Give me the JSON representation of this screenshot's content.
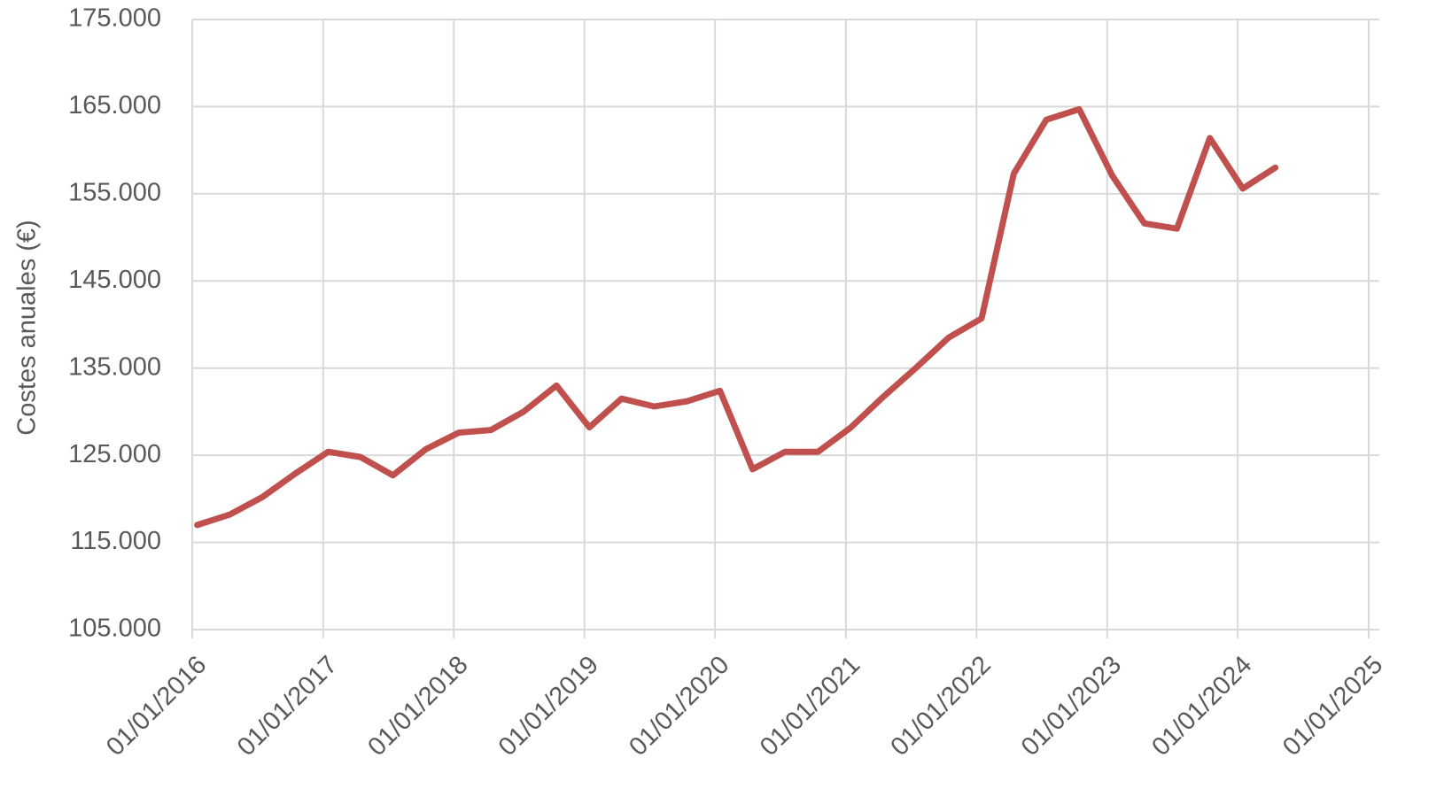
{
  "chart_data": {
    "type": "line",
    "y_label": "Costes anuales (€)",
    "x": [
      "2016-01-15",
      "2016-04-15",
      "2016-07-15",
      "2016-10-15",
      "2017-01-15",
      "2017-04-15",
      "2017-07-15",
      "2017-10-15",
      "2018-01-15",
      "2018-04-15",
      "2018-07-15",
      "2018-10-15",
      "2019-01-15",
      "2019-04-15",
      "2019-07-15",
      "2019-10-15",
      "2020-01-15",
      "2020-04-15",
      "2020-07-15",
      "2020-10-15",
      "2021-01-15",
      "2021-04-15",
      "2021-07-15",
      "2021-10-15",
      "2022-01-15",
      "2022-04-15",
      "2022-07-15",
      "2022-10-15",
      "2023-01-15",
      "2023-04-15",
      "2023-07-15",
      "2023-10-15",
      "2024-01-15",
      "2024-04-15"
    ],
    "series": [
      {
        "name": null,
        "color": "#c0504d",
        "values": [
          117000,
          118200,
          120200,
          122900,
          125400,
          124800,
          122700,
          125700,
          127600,
          127900,
          130000,
          133000,
          128200,
          131500,
          130600,
          131200,
          132400,
          123400,
          125400,
          125400,
          128200,
          131700,
          135000,
          138500,
          140700,
          157300,
          163500,
          164700,
          157100,
          151600,
          151000,
          161400,
          155600,
          158000
        ]
      }
    ],
    "xlim": [
      "2016-01-01",
      "2025-01-01"
    ],
    "xticks": [
      {
        "value": "2016-01-01",
        "label": "01/01/2016"
      },
      {
        "value": "2017-01-01",
        "label": "01/01/2017"
      },
      {
        "value": "2018-01-01",
        "label": "01/01/2018"
      },
      {
        "value": "2019-01-01",
        "label": "01/01/2019"
      },
      {
        "value": "2020-01-01",
        "label": "01/01/2020"
      },
      {
        "value": "2021-01-01",
        "label": "01/01/2021"
      },
      {
        "value": "2022-01-01",
        "label": "01/01/2022"
      },
      {
        "value": "2023-01-01",
        "label": "01/01/2023"
      },
      {
        "value": "2024-01-01",
        "label": "01/01/2024"
      },
      {
        "value": "2025-01-01",
        "label": "01/01/2025"
      }
    ],
    "ylim": [
      105000,
      175000
    ],
    "yticks": [
      {
        "value": 105000,
        "label": "105.000"
      },
      {
        "value": 115000,
        "label": "115.000"
      },
      {
        "value": 125000,
        "label": "125.000"
      },
      {
        "value": 135000,
        "label": "135.000"
      },
      {
        "value": 145000,
        "label": "145.000"
      },
      {
        "value": 155000,
        "label": "155.000"
      },
      {
        "value": 165000,
        "label": "165.000"
      },
      {
        "value": 175000,
        "label": "175.000"
      }
    ],
    "grid": true
  }
}
